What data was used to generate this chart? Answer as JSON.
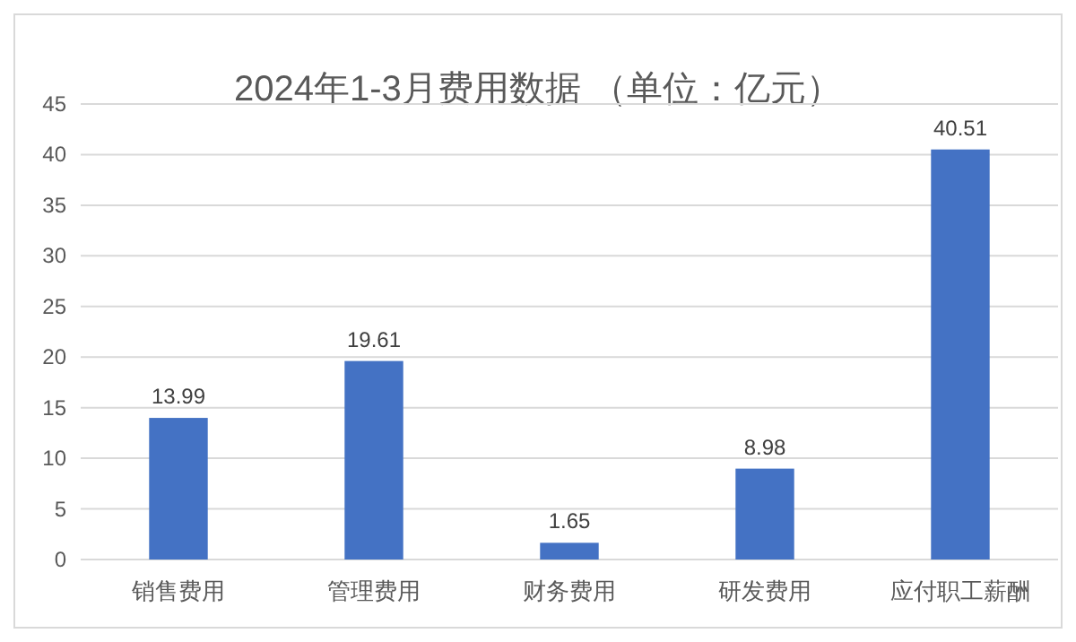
{
  "chart_data": {
    "type": "bar",
    "title": "2024年1-3月费用数据 （单位：亿元）",
    "categories": [
      "销售费用",
      "管理费用",
      "财务费用",
      "研发费用",
      "应付职工薪酬"
    ],
    "values": [
      13.99,
      19.61,
      1.65,
      8.98,
      40.51
    ],
    "color": "#4472c4",
    "ylim": [
      0,
      45
    ],
    "yticks": [
      0,
      5,
      10,
      15,
      20,
      25,
      30,
      35,
      40,
      45
    ],
    "grid": "y",
    "data_labels": true
  }
}
